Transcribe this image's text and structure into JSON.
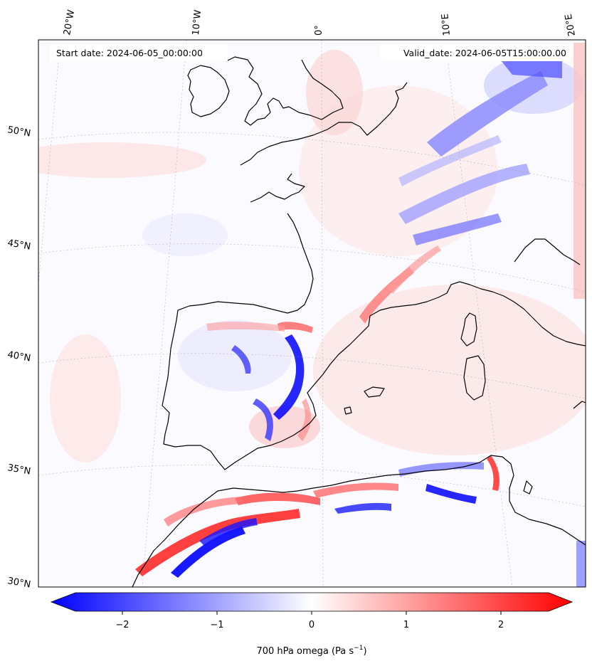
{
  "map": {
    "start_label": "Start date: 2024-06-05_00:00:00",
    "valid_label": "Valid_date: 2024-06-05T15:00:00.00",
    "lon_labels": [
      "20°W",
      "10°W",
      "0°",
      "10°E",
      "20°E"
    ],
    "lat_labels": [
      "50°N",
      "45°N",
      "40°N",
      "35°N",
      "30°N"
    ],
    "colors": {
      "negative": "#0000ff",
      "neutral": "#ffffff",
      "positive": "#ff0000",
      "coastline": "#000000"
    },
    "projection_graticule": true,
    "field": "700 hPa omega"
  },
  "colorbar": {
    "ticks": [
      "−2",
      "−1",
      "0",
      "1",
      "2"
    ],
    "label_main": "700 hPa omega (Pa s",
    "label_exp": "−1",
    "label_close": ")",
    "range": [
      -2.5,
      2.5
    ],
    "extend": "both"
  }
}
